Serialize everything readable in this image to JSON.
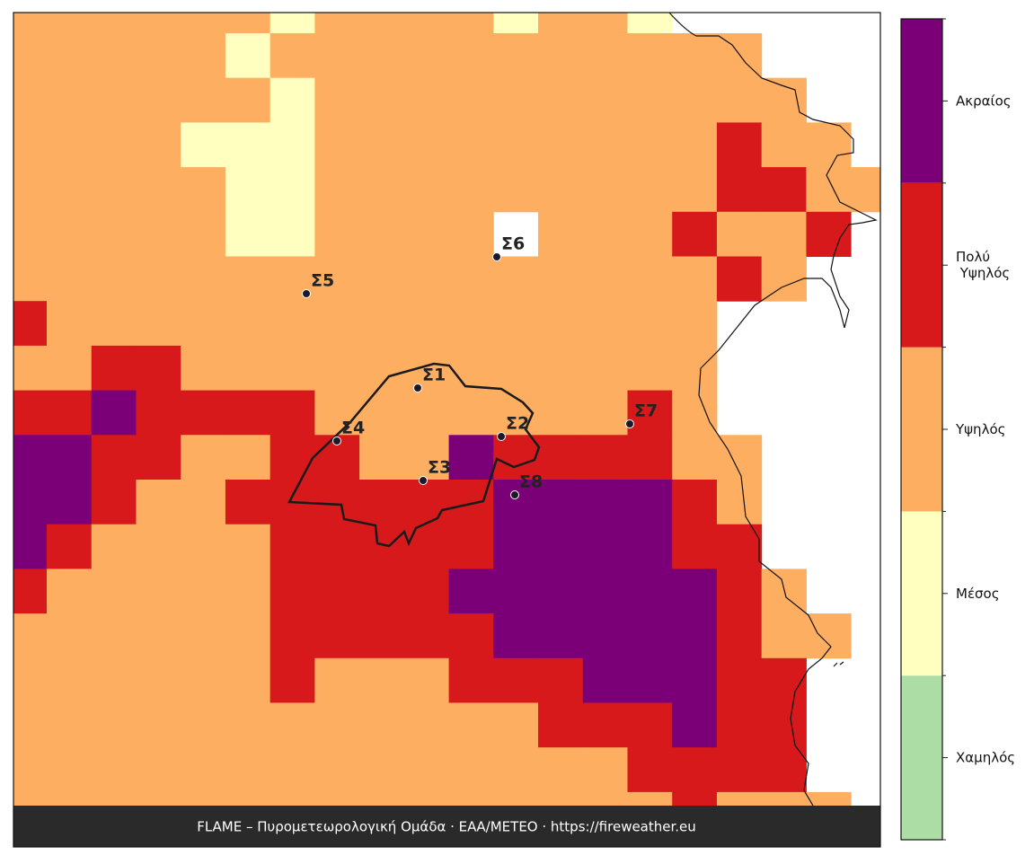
{
  "legend": {
    "levels": [
      {
        "label": "Χαμηλός",
        "color": "#abdda4"
      },
      {
        "label": "Μέσος",
        "color": "#ffffbf"
      },
      {
        "label": "Υψηλός",
        "color": "#fdae61"
      },
      {
        "label": "Πολύ Υψηλός",
        "color": "#d7191c"
      },
      {
        "label": "Ακραίος",
        "color": "#7b0077"
      }
    ]
  },
  "grid": {
    "rows": [
      [
        2,
        2,
        2,
        2,
        2,
        2,
        1,
        2,
        2,
        2,
        2,
        1,
        2,
        2,
        1,
        null,
        null,
        null,
        null,
        null
      ],
      [
        2,
        2,
        2,
        2,
        2,
        1,
        2,
        2,
        2,
        2,
        2,
        2,
        2,
        2,
        2,
        2,
        2,
        null,
        null,
        null
      ],
      [
        2,
        2,
        2,
        2,
        2,
        2,
        1,
        2,
        2,
        2,
        2,
        2,
        2,
        2,
        2,
        2,
        2,
        2,
        null,
        null
      ],
      [
        2,
        2,
        2,
        2,
        1,
        1,
        1,
        2,
        2,
        2,
        2,
        2,
        2,
        2,
        2,
        2,
        3,
        2,
        2,
        null
      ],
      [
        2,
        2,
        2,
        2,
        2,
        1,
        1,
        2,
        2,
        2,
        2,
        2,
        2,
        2,
        2,
        2,
        3,
        3,
        2,
        2
      ],
      [
        2,
        2,
        2,
        2,
        2,
        1,
        1,
        2,
        2,
        2,
        2,
        null,
        2,
        2,
        2,
        3,
        2,
        2,
        3,
        null
      ],
      [
        2,
        2,
        2,
        2,
        2,
        2,
        2,
        2,
        2,
        2,
        2,
        2,
        2,
        2,
        2,
        2,
        3,
        2,
        null,
        null
      ],
      [
        3,
        2,
        2,
        2,
        2,
        2,
        2,
        2,
        2,
        2,
        2,
        2,
        2,
        2,
        2,
        2,
        null,
        null,
        null,
        null
      ],
      [
        2,
        2,
        3,
        3,
        2,
        2,
        2,
        2,
        2,
        2,
        2,
        2,
        2,
        2,
        2,
        2,
        null,
        null,
        null,
        null
      ],
      [
        3,
        3,
        4,
        3,
        3,
        3,
        3,
        2,
        2,
        2,
        2,
        2,
        2,
        2,
        3,
        2,
        null,
        null,
        null,
        null
      ],
      [
        4,
        4,
        3,
        3,
        2,
        2,
        3,
        3,
        2,
        2,
        4,
        3,
        3,
        3,
        3,
        2,
        2,
        null,
        null,
        null
      ],
      [
        4,
        4,
        3,
        2,
        2,
        3,
        3,
        3,
        3,
        3,
        3,
        4,
        4,
        4,
        4,
        3,
        2,
        null,
        null,
        null
      ],
      [
        4,
        3,
        2,
        2,
        2,
        2,
        3,
        3,
        3,
        3,
        3,
        4,
        4,
        4,
        4,
        3,
        3,
        null,
        null,
        null
      ],
      [
        3,
        2,
        2,
        2,
        2,
        2,
        3,
        3,
        3,
        3,
        4,
        4,
        4,
        4,
        4,
        4,
        3,
        2,
        null,
        null
      ],
      [
        2,
        2,
        2,
        2,
        2,
        2,
        3,
        3,
        3,
        3,
        3,
        4,
        4,
        4,
        4,
        4,
        3,
        2,
        2,
        null
      ],
      [
        2,
        2,
        2,
        2,
        2,
        2,
        3,
        2,
        2,
        2,
        3,
        3,
        3,
        4,
        4,
        4,
        3,
        3,
        null,
        null
      ],
      [
        2,
        2,
        2,
        2,
        2,
        2,
        2,
        2,
        2,
        2,
        2,
        2,
        3,
        3,
        3,
        4,
        3,
        3,
        null,
        null
      ],
      [
        2,
        2,
        2,
        2,
        2,
        2,
        2,
        2,
        2,
        2,
        2,
        2,
        2,
        2,
        3,
        3,
        3,
        3,
        null,
        null
      ],
      [
        2,
        2,
        2,
        2,
        2,
        2,
        2,
        2,
        2,
        2,
        2,
        2,
        2,
        2,
        2,
        3,
        2,
        2,
        2,
        null
      ]
    ]
  },
  "stations": [
    "Σ1",
    "Σ2",
    "Σ3",
    "Σ4",
    "Σ5",
    "Σ6",
    "Σ7",
    "Σ8"
  ],
  "footer": "FLAME – Πυρομετεωρολογική Ομάδα · ΕΑΑ/METEO · https://fireweather.eu"
}
